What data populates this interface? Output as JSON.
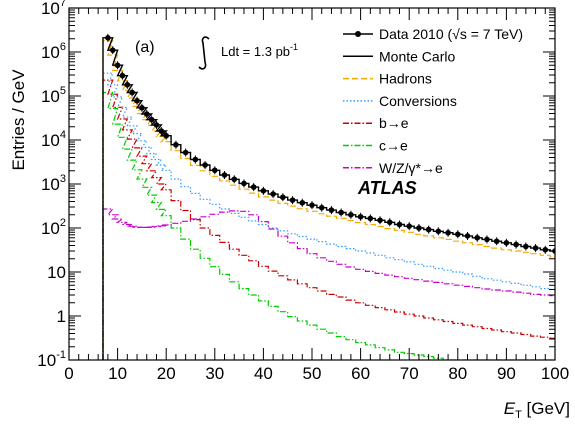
{
  "chart_data": {
    "type": "line",
    "panel_label": "(a)",
    "experiment": "ATLAS",
    "luminosity_label": "Ldt = 1.3 pb",
    "luminosity_exponent": "-1",
    "xlabel": "E",
    "xlabel_sub": "T",
    "xlabel_unit": " [GeV]",
    "ylabel": "Entries / GeV",
    "xlim": [
      0,
      100
    ],
    "ylim": [
      0.1,
      10000000
    ],
    "y_log_scale": true,
    "x_ticks": [
      "0",
      "10",
      "20",
      "30",
      "40",
      "50",
      "60",
      "70",
      "80",
      "90",
      "100"
    ],
    "y_ticks": [
      {
        "base": "10",
        "exp": "-1"
      },
      {
        "base": "1",
        "exp": ""
      },
      {
        "base": "10",
        "exp": ""
      },
      {
        "base": "10",
        "exp": "2"
      },
      {
        "base": "10",
        "exp": "3"
      },
      {
        "base": "10",
        "exp": "4"
      },
      {
        "base": "10",
        "exp": "5"
      },
      {
        "base": "10",
        "exp": "6"
      },
      {
        "base": "10",
        "exp": "7"
      }
    ],
    "legend_placement": "top-right",
    "x": [
      8,
      9,
      10,
      11,
      12,
      13,
      14,
      15,
      16,
      17,
      18,
      19,
      20,
      22,
      24,
      26,
      28,
      30,
      32,
      34,
      36,
      38,
      40,
      42,
      44,
      46,
      48,
      50,
      52,
      54,
      56,
      58,
      60,
      62,
      64,
      66,
      68,
      70,
      72,
      74,
      76,
      78,
      80,
      82,
      84,
      86,
      88,
      90,
      92,
      94,
      96,
      98,
      100
    ],
    "series": [
      {
        "name": "Data 2010 (√s = 7 TeV)",
        "color": "#000000",
        "style": "points",
        "values": [
          2100000,
          1100000,
          500000,
          290000,
          180000,
          120000,
          78000,
          54000,
          39000,
          29000,
          22000,
          16000,
          12500,
          7800,
          5200,
          3600,
          2700,
          2050,
          1600,
          1280,
          1030,
          850,
          700,
          590,
          500,
          430,
          375,
          330,
          290,
          255,
          225,
          200,
          180,
          165,
          150,
          135,
          120,
          110,
          100,
          92,
          84,
          78,
          72,
          66,
          60,
          55,
          50,
          46,
          42,
          38,
          35,
          32,
          30
        ]
      },
      {
        "name": "Monte Carlo",
        "color": "#000000",
        "style": "solid",
        "values": [
          2100000,
          1100000,
          500000,
          290000,
          180000,
          120000,
          78000,
          54000,
          39000,
          29000,
          22000,
          16000,
          12500,
          7800,
          5200,
          3600,
          2700,
          2050,
          1600,
          1280,
          1030,
          850,
          700,
          590,
          500,
          430,
          375,
          330,
          290,
          255,
          225,
          200,
          180,
          165,
          150,
          135,
          120,
          110,
          100,
          92,
          84,
          78,
          72,
          66,
          60,
          55,
          50,
          46,
          42,
          38,
          35,
          32,
          30
        ]
      },
      {
        "name": "Hadrons",
        "color": "#f5a800",
        "style": "dashed",
        "values": [
          1800000,
          850000,
          380000,
          220000,
          135000,
          90000,
          58000,
          40000,
          29000,
          21500,
          16000,
          12000,
          9200,
          5700,
          3800,
          2650,
          2000,
          1500,
          1180,
          940,
          760,
          620,
          510,
          430,
          365,
          315,
          275,
          240,
          210,
          185,
          165,
          148,
          133,
          120,
          108,
          97,
          88,
          80,
          72,
          66,
          60,
          55,
          50,
          46,
          42,
          38,
          35,
          32,
          30,
          28,
          26,
          24,
          22
        ]
      },
      {
        "name": "Conversions",
        "color": "#3399ff",
        "style": "dotted",
        "values": [
          330000,
          180000,
          95000,
          55000,
          33000,
          21000,
          14000,
          9600,
          6800,
          4900,
          3600,
          2700,
          2050,
          1300,
          870,
          610,
          450,
          345,
          270,
          215,
          175,
          145,
          120,
          100,
          86,
          74,
          64,
          56,
          49,
          43,
          38,
          34,
          30,
          27,
          24,
          21,
          19,
          17,
          15,
          13.5,
          12,
          11,
          10,
          9,
          8,
          7,
          6.5,
          6,
          5.5,
          5,
          4.6,
          4.2,
          4
        ]
      },
      {
        "name": "b→e",
        "color": "#cc0000",
        "style": "dashdot",
        "values": [
          230000,
          110000,
          55000,
          30000,
          17000,
          10500,
          6600,
          4300,
          2900,
          2000,
          1400,
          1000,
          740,
          420,
          250,
          155,
          100,
          68,
          47,
          33,
          24,
          18,
          13.5,
          10.5,
          8.2,
          6.6,
          5.4,
          4.4,
          3.7,
          3.1,
          2.7,
          2.3,
          2,
          1.75,
          1.55,
          1.38,
          1.23,
          1.1,
          1,
          0.9,
          0.82,
          0.75,
          0.68,
          0.62,
          0.57,
          0.52,
          0.48,
          0.44,
          0.41,
          0.38,
          0.35,
          0.33,
          0.31
        ]
      },
      {
        "name": "c→e",
        "color": "#00cc00",
        "style": "dashdot",
        "values": [
          120000,
          52000,
          23000,
          11500,
          6200,
          3500,
          2100,
          1300,
          840,
          560,
          380,
          265,
          190,
          100,
          56,
          33,
          20.5,
          13.2,
          8.8,
          6,
          4.2,
          3,
          2.2,
          1.65,
          1.25,
          0.97,
          0.77,
          0.62,
          0.5,
          0.41,
          0.34,
          0.29,
          0.25,
          0.22,
          0.19,
          0.17,
          0.15,
          0.14,
          0.13,
          0.12,
          0.11,
          0.1,
          0.1,
          0.1,
          0.1,
          0.1,
          0.1,
          0.1,
          0.1,
          0.1,
          0.1,
          0.1,
          0.1
        ]
      },
      {
        "name": "W/Z/γ*→e",
        "color": "#cc00cc",
        "style": "dashdot",
        "values": [
          270,
          200,
          160,
          135,
          120,
          110,
          105,
          103,
          103,
          105,
          108,
          112,
          117,
          128,
          142,
          160,
          180,
          205,
          230,
          245,
          240,
          200,
          140,
          95,
          65,
          46,
          34,
          26,
          21,
          17.5,
          15,
          13,
          11.5,
          10.3,
          9.3,
          8.5,
          7.8,
          7.2,
          6.7,
          6.2,
          5.8,
          5.4,
          5,
          4.7,
          4.4,
          4.1,
          3.9,
          3.7,
          3.5,
          3.3,
          3.1,
          3,
          2.9
        ]
      }
    ]
  }
}
